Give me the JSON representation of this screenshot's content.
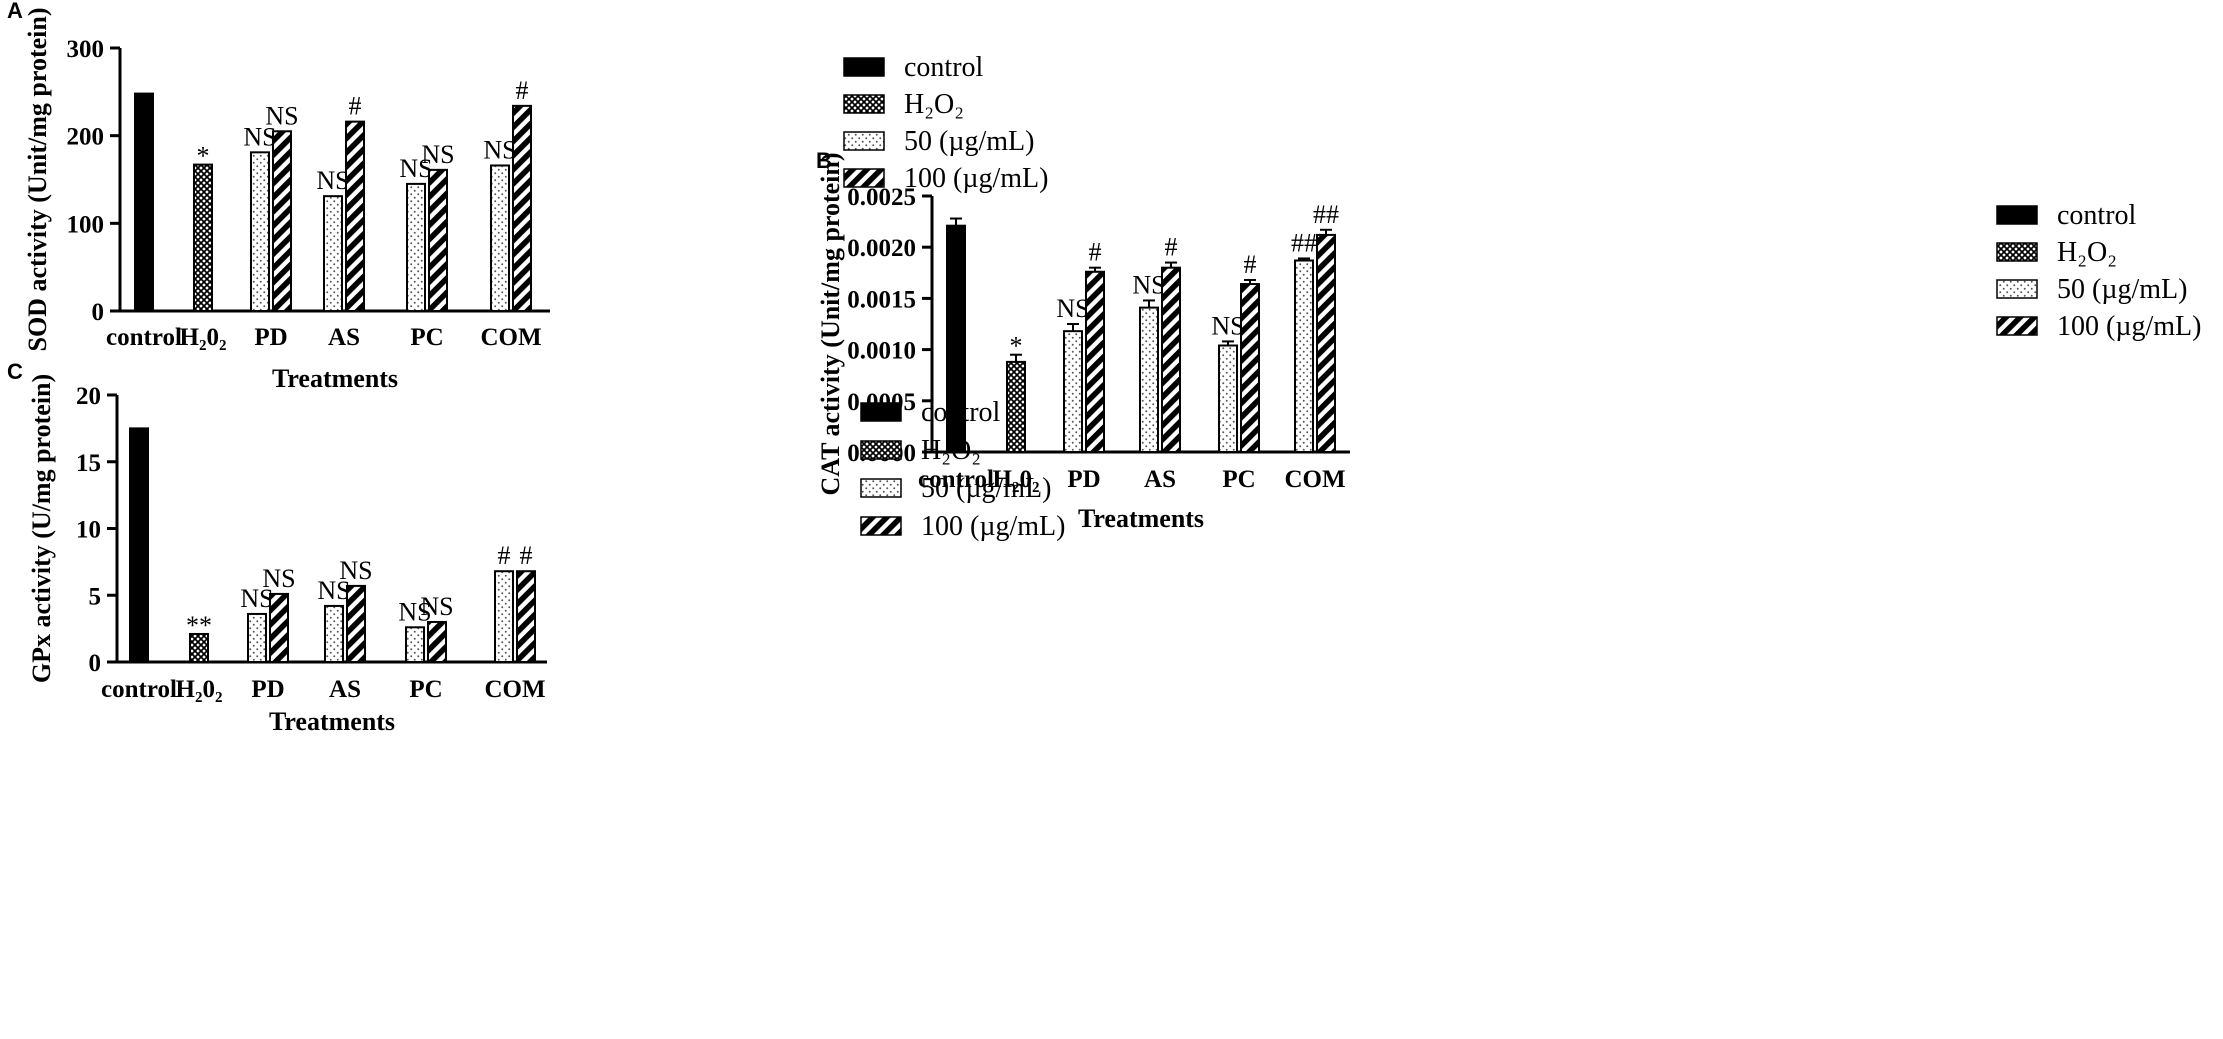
{
  "colors": {
    "ink": "#000000",
    "paper": "#ffffff"
  },
  "legend_entries": [
    {
      "label": "control",
      "pattern": "solid"
    },
    {
      "label": "H₂O₂",
      "pattern": "crosshatch"
    },
    {
      "label": "50 (µg/mL)",
      "pattern": "dots"
    },
    {
      "label": "100 (µg/mL)",
      "pattern": "diagonal"
    }
  ],
  "chart_data": [
    {
      "panel": "A",
      "type": "bar",
      "xlabel": "Treatments",
      "ylabel": "SOD activity (Unit/mg protein)",
      "ylim": [
        0,
        300
      ],
      "yticks": [
        "0",
        "100",
        "200",
        "300"
      ],
      "categories": [
        "control",
        "H₂0₂",
        "PD",
        "AS",
        "PC",
        "COM"
      ],
      "error_bars": false,
      "bars": [
        {
          "category": 0,
          "series": "control",
          "value": 248,
          "label": ""
        },
        {
          "category": 1,
          "series": "H2O2",
          "value": 167,
          "label": "*"
        },
        {
          "category": 2,
          "series": "50",
          "value": 181,
          "label": "NS"
        },
        {
          "category": 2,
          "series": "100",
          "value": 205,
          "label": "NS"
        },
        {
          "category": 3,
          "series": "50",
          "value": 131,
          "label": "NS"
        },
        {
          "category": 3,
          "series": "100",
          "value": 216,
          "label": "#"
        },
        {
          "category": 4,
          "series": "50",
          "value": 145,
          "label": "NS"
        },
        {
          "category": 4,
          "series": "100",
          "value": 161,
          "label": "NS"
        },
        {
          "category": 5,
          "series": "50",
          "value": 166,
          "label": "NS"
        },
        {
          "category": 5,
          "series": "100",
          "value": 234,
          "label": "#"
        }
      ]
    },
    {
      "panel": "B",
      "type": "bar",
      "xlabel": "Treatments",
      "ylabel": "CAT activity (Unit/mg protein)",
      "ylim": [
        0,
        0.0025
      ],
      "yticks": [
        "0.0000",
        "0.0005",
        "0.0010",
        "0.0015",
        "0.0020",
        "0.0025"
      ],
      "categories": [
        "control",
        "H₂0₂",
        "PD",
        "AS",
        "PC",
        "COM"
      ],
      "error_bars": true,
      "bars": [
        {
          "category": 0,
          "series": "control",
          "value": 0.00221,
          "error": 7e-05,
          "label": ""
        },
        {
          "category": 1,
          "series": "H2O2",
          "value": 0.00088,
          "error": 7e-05,
          "label": "*"
        },
        {
          "category": 2,
          "series": "50",
          "value": 0.00118,
          "error": 7e-05,
          "label": "NS"
        },
        {
          "category": 2,
          "series": "100",
          "value": 0.00176,
          "error": 4e-05,
          "label": "#"
        },
        {
          "category": 3,
          "series": "50",
          "value": 0.00141,
          "error": 7e-05,
          "label": "NS"
        },
        {
          "category": 3,
          "series": "100",
          "value": 0.0018,
          "error": 5e-05,
          "label": "#"
        },
        {
          "category": 4,
          "series": "50",
          "value": 0.00104,
          "error": 4e-05,
          "label": "NS"
        },
        {
          "category": 4,
          "series": "100",
          "value": 0.00164,
          "error": 4e-05,
          "label": "#"
        },
        {
          "category": 5,
          "series": "50",
          "value": 0.00187,
          "error": 2e-05,
          "label": "##"
        },
        {
          "category": 5,
          "series": "100",
          "value": 0.00212,
          "error": 5e-05,
          "label": "##"
        }
      ]
    },
    {
      "panel": "C",
      "type": "bar",
      "xlabel": "Treatments",
      "ylabel": "GPx activity (U/mg protein)",
      "ylim": [
        0,
        20
      ],
      "yticks": [
        "0",
        "5",
        "10",
        "15",
        "20"
      ],
      "categories": [
        "control",
        "H₂0₂",
        "PD",
        "AS",
        "PC",
        "COM"
      ],
      "error_bars": false,
      "bars": [
        {
          "category": 0,
          "series": "control",
          "value": 17.5,
          "label": ""
        },
        {
          "category": 1,
          "series": "H2O2",
          "value": 2.1,
          "label": "**"
        },
        {
          "category": 2,
          "series": "50",
          "value": 3.6,
          "label": "NS"
        },
        {
          "category": 2,
          "series": "100",
          "value": 5.1,
          "label": "NS"
        },
        {
          "category": 3,
          "series": "50",
          "value": 4.2,
          "label": "NS"
        },
        {
          "category": 3,
          "series": "100",
          "value": 5.7,
          "label": "NS"
        },
        {
          "category": 4,
          "series": "50",
          "value": 2.6,
          "label": "NS"
        },
        {
          "category": 4,
          "series": "100",
          "value": 3.0,
          "label": "NS"
        },
        {
          "category": 5,
          "series": "50",
          "value": 6.8,
          "label": "#"
        },
        {
          "category": 5,
          "series": "100",
          "value": 6.8,
          "label": "#"
        }
      ]
    }
  ]
}
